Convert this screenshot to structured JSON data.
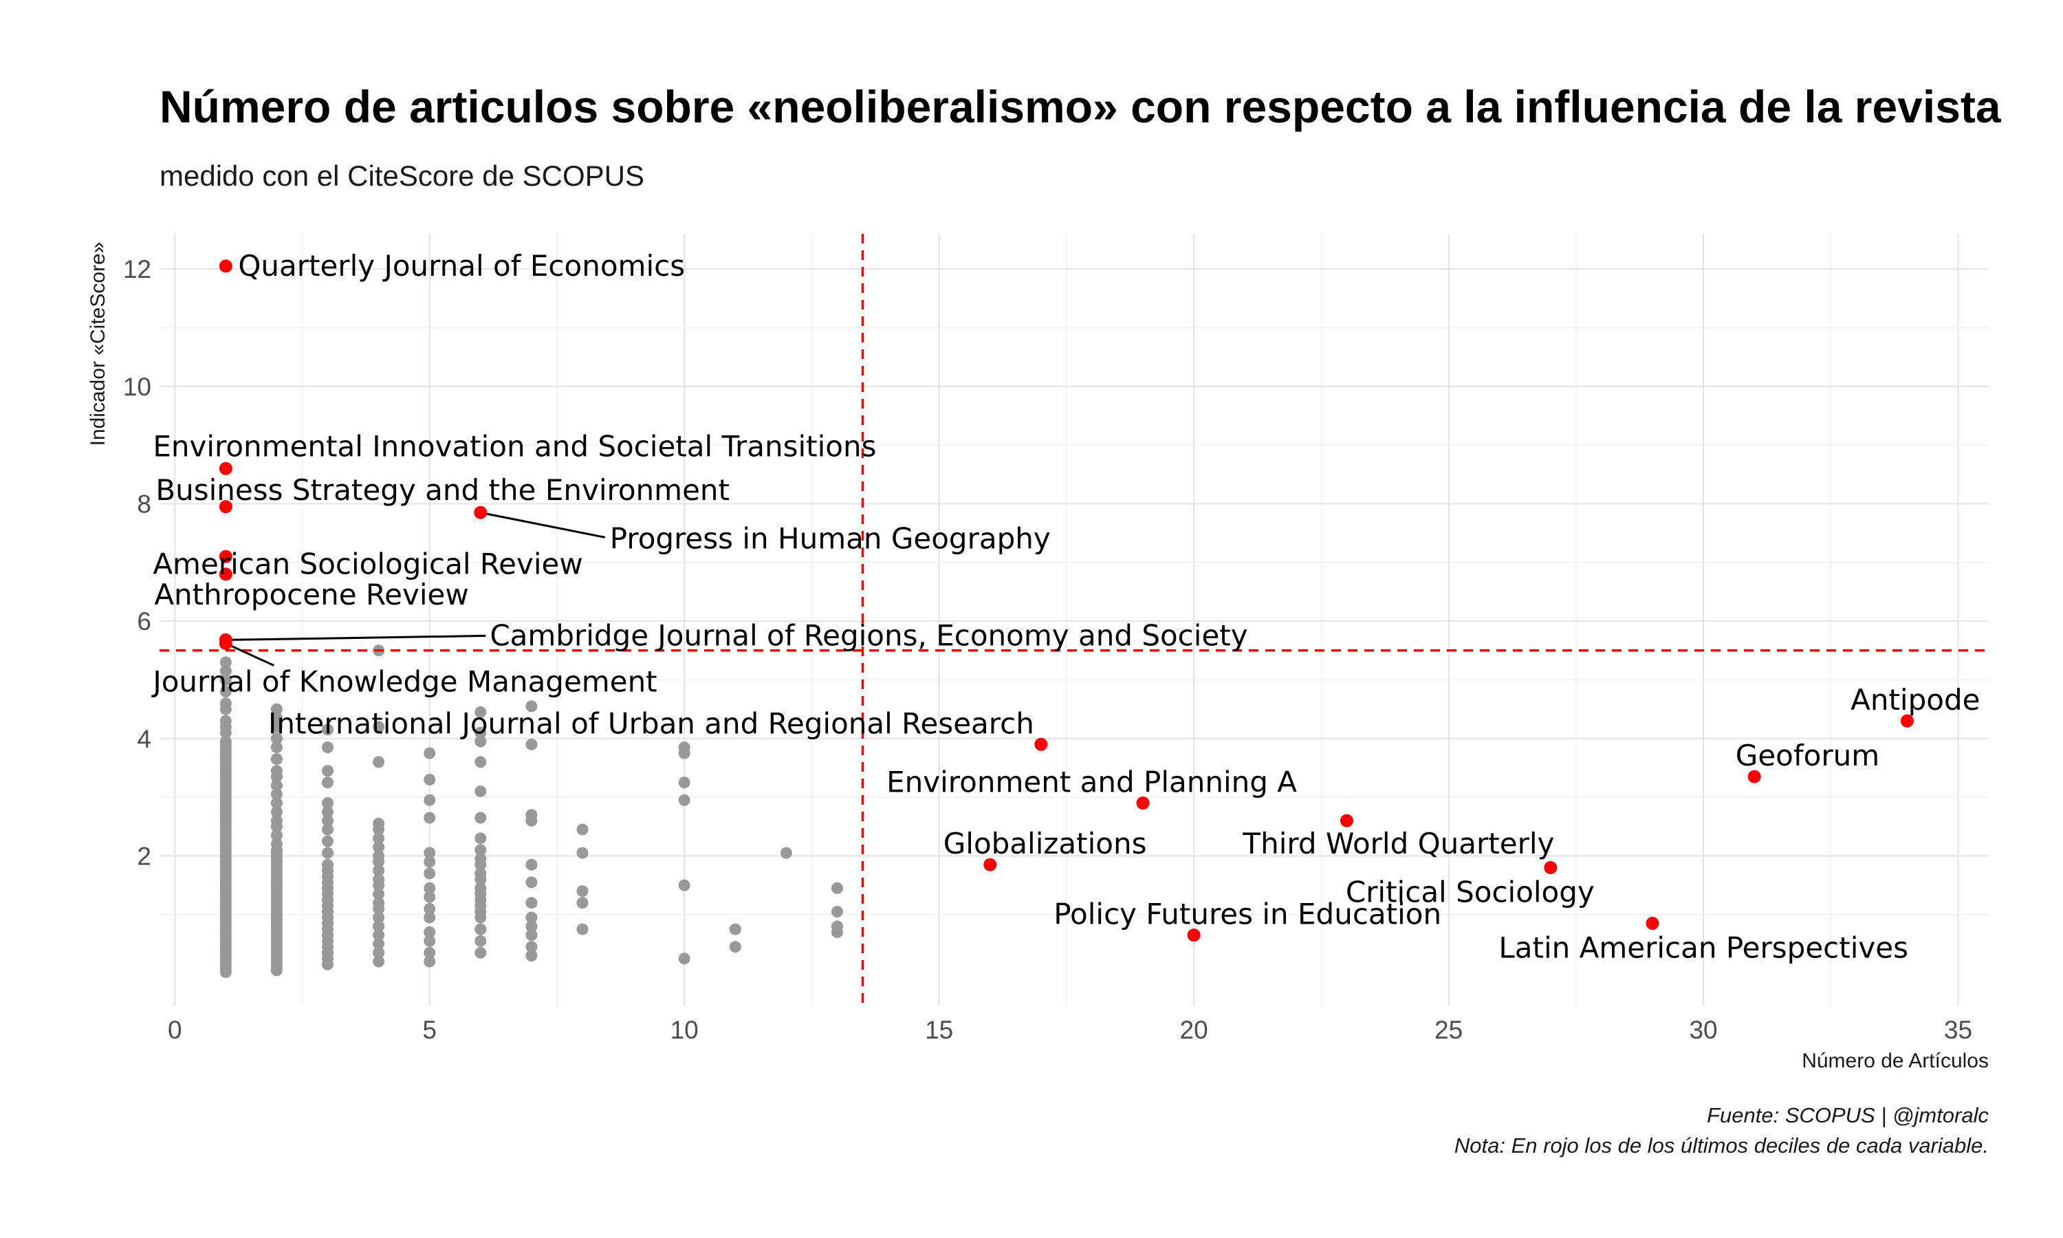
{
  "chart_data": {
    "type": "scatter",
    "title": "Número de articulos sobre «neoliberalismo» con respecto a la influencia de la revista",
    "subtitle": "medido con el CiteScore de SCOPUS",
    "xlabel": "Número de Artículos",
    "ylabel": "Indicador «CiteScore»",
    "caption": [
      "Fuente: SCOPUS | @jmtoralc",
      "Nota: En rojo los de los últimos deciles de cada variable."
    ],
    "xlim": [
      -0.3,
      35.6
    ],
    "ylim": [
      -0.55,
      12.6
    ],
    "x_ticks": [
      0,
      5,
      10,
      15,
      20,
      25,
      30,
      35
    ],
    "y_ticks": [
      2,
      4,
      6,
      8,
      10,
      12
    ],
    "grid": true,
    "highlight_color": "#ff0000",
    "point_color": "#999999",
    "threshold_x": 13.5,
    "threshold_y": 5.5,
    "highlighted": [
      {
        "x": 1,
        "y": 12.05,
        "label": "Quarterly Journal of Economics"
      },
      {
        "x": 1,
        "y": 8.6,
        "label": "Environmental Innovation and Societal Transitions"
      },
      {
        "x": 1,
        "y": 7.95,
        "label": "Business Strategy and the Environment"
      },
      {
        "x": 6,
        "y": 7.85,
        "label": "Progress in Human Geography"
      },
      {
        "x": 1,
        "y": 7.1,
        "label": "American Sociological Review"
      },
      {
        "x": 1,
        "y": 6.8,
        "label": "Anthropocene Review"
      },
      {
        "x": 1,
        "y": 5.68,
        "label": "Cambridge Journal of Regions, Economy and Society"
      },
      {
        "x": 1,
        "y": 5.62,
        "label": "Journal of Knowledge Management"
      },
      {
        "x": 17,
        "y": 3.9,
        "label": "International Journal of Urban and Regional Research"
      },
      {
        "x": 19,
        "y": 2.9,
        "label": "Environment and Planning A"
      },
      {
        "x": 16,
        "y": 1.85,
        "label": "Globalizations"
      },
      {
        "x": 23,
        "y": 2.6,
        "label": "Third World Quarterly"
      },
      {
        "x": 20,
        "y": 0.65,
        "label": "Policy Futures in Education"
      },
      {
        "x": 27,
        "y": 1.8,
        "label": "Critical Sociology"
      },
      {
        "x": 29,
        "y": 0.85,
        "label": "Latin American Perspectives"
      },
      {
        "x": 31,
        "y": 3.35,
        "label": "Geoforum"
      },
      {
        "x": 34,
        "y": 4.3,
        "label": "Antipode"
      }
    ],
    "others": [
      {
        "x": 1,
        "y": [
          0.02,
          0.05,
          0.1,
          0.15,
          0.2,
          0.25,
          0.3,
          0.35,
          0.4,
          0.45,
          0.5,
          0.55,
          0.6,
          0.65,
          0.7,
          0.75,
          0.8,
          0.85,
          0.9,
          0.95,
          1.0,
          1.05,
          1.1,
          1.15,
          1.2,
          1.25,
          1.3,
          1.35,
          1.4,
          1.45,
          1.5,
          1.55,
          1.6,
          1.65,
          1.7,
          1.75,
          1.8,
          1.85,
          1.9,
          1.95,
          2.0,
          2.05,
          2.1,
          2.15,
          2.2,
          2.25,
          2.3,
          2.35,
          2.4,
          2.45,
          2.5,
          2.55,
          2.6,
          2.65,
          2.7,
          2.75,
          2.8,
          2.85,
          2.9,
          2.95,
          3.0,
          3.05,
          3.1,
          3.15,
          3.2,
          3.25,
          3.3,
          3.35,
          3.4,
          3.45,
          3.5,
          3.55,
          3.6,
          3.65,
          3.7,
          3.75,
          3.8,
          3.85,
          3.9,
          3.95,
          4.1,
          4.2,
          4.3,
          4.5,
          4.6,
          4.8,
          5.0,
          5.15,
          5.3
        ]
      },
      {
        "x": 2,
        "y": [
          0.05,
          0.1,
          0.15,
          0.2,
          0.25,
          0.3,
          0.35,
          0.4,
          0.45,
          0.5,
          0.55,
          0.6,
          0.65,
          0.7,
          0.75,
          0.8,
          0.85,
          0.9,
          0.95,
          1.0,
          1.05,
          1.1,
          1.15,
          1.2,
          1.25,
          1.3,
          1.35,
          1.4,
          1.45,
          1.5,
          1.55,
          1.6,
          1.65,
          1.7,
          1.75,
          1.8,
          1.85,
          1.9,
          1.95,
          2.0,
          2.05,
          2.1,
          2.2,
          2.35,
          2.5,
          2.6,
          2.75,
          2.9,
          3.05,
          3.2,
          3.35,
          3.45,
          3.65,
          3.85,
          4.0,
          4.2,
          4.35,
          4.5
        ]
      },
      {
        "x": 3,
        "y": [
          0.15,
          0.25,
          0.35,
          0.45,
          0.55,
          0.65,
          0.75,
          0.85,
          0.95,
          1.05,
          1.15,
          1.25,
          1.35,
          1.45,
          1.55,
          1.65,
          1.75,
          1.85,
          2.05,
          2.25,
          2.45,
          2.6,
          2.75,
          2.9,
          3.25,
          3.45,
          3.85,
          4.15
        ]
      },
      {
        "x": 4,
        "y": [
          0.2,
          0.35,
          0.5,
          0.65,
          0.8,
          0.95,
          1.1,
          1.2,
          1.35,
          1.5,
          1.6,
          1.75,
          1.9,
          2.0,
          2.15,
          2.3,
          2.45,
          2.55,
          3.6,
          4.2,
          5.5
        ]
      },
      {
        "x": 5,
        "y": [
          0.2,
          0.35,
          0.55,
          0.7,
          0.95,
          1.1,
          1.3,
          1.45,
          1.7,
          1.9,
          2.05,
          2.65,
          2.95,
          3.3,
          3.75
        ]
      },
      {
        "x": 6,
        "y": [
          0.35,
          0.55,
          0.75,
          0.95,
          1.05,
          1.15,
          1.25,
          1.35,
          1.45,
          1.6,
          1.7,
          1.85,
          1.95,
          2.1,
          2.3,
          2.65,
          3.1,
          3.6,
          3.95,
          4.1,
          4.45
        ]
      },
      {
        "x": 7,
        "y": [
          0.3,
          0.45,
          0.65,
          0.8,
          0.95,
          1.2,
          1.55,
          1.85,
          2.6,
          2.7,
          3.9,
          4.55
        ]
      },
      {
        "x": 8,
        "y": [
          0.75,
          1.2,
          1.4,
          2.05,
          2.45
        ]
      },
      {
        "x": 10,
        "y": [
          0.25,
          1.5,
          2.95,
          3.25,
          3.75,
          3.85
        ]
      },
      {
        "x": 11,
        "y": [
          0.45,
          0.75
        ]
      },
      {
        "x": 12,
        "y": [
          2.05
        ]
      },
      {
        "x": 13,
        "y": [
          0.7,
          0.8,
          1.05,
          1.45
        ]
      }
    ]
  }
}
